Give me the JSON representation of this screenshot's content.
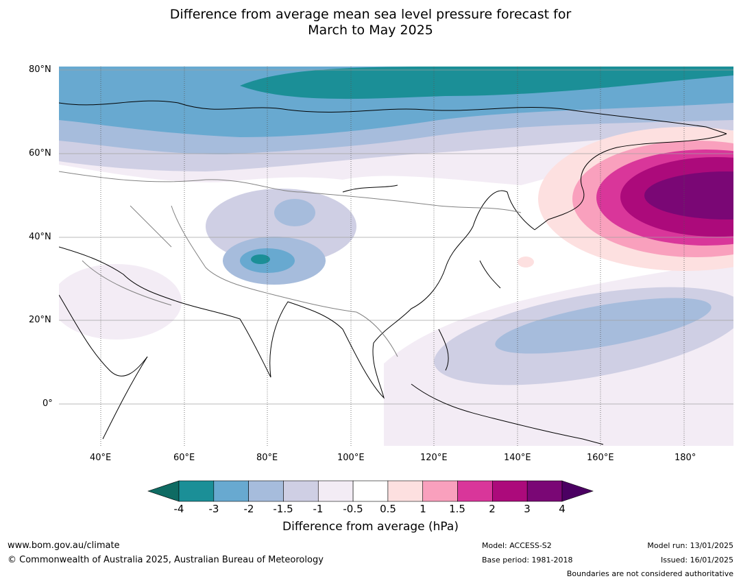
{
  "title_line1": "Difference from average mean sea level pressure forecast for",
  "title_line2": "March to May 2025",
  "lat_labels": [
    "80°N",
    "60°N",
    "40°N",
    "20°N",
    "0°"
  ],
  "lon_labels": [
    "40°E",
    "60°E",
    "80°E",
    "100°E",
    "120°E",
    "140°E",
    "160°E",
    "180°"
  ],
  "colorbar": {
    "ticks": [
      "-4",
      "-3",
      "-2",
      "-1.5",
      "-1",
      "-0.5",
      "0.5",
      "1",
      "1.5",
      "2",
      "3",
      "4"
    ],
    "colors": {
      "below": "#0f6b63",
      "bins": [
        "#1b8f97",
        "#68a9d0",
        "#a6bcdc",
        "#cfcfe4",
        "#f3ecf5",
        "#ffffff",
        "#fde0e0",
        "#f9a0bd",
        "#d9369a",
        "#ac0a7b",
        "#7a0775"
      ],
      "above": "#4b0062"
    },
    "label": "Difference from average (hPa)"
  },
  "footer": {
    "website": "www.bom.gov.au/climate",
    "copyright": "© Commonwealth of Australia 2025, Australian Bureau of Meteorology",
    "model": "Model: ACCESS-S2",
    "base_period": "Base period: 1981-2018",
    "model_run": "Model run: 13/01/2025",
    "issued": "Issued: 16/01/2025",
    "disclaimer": "Boundaries are not considered authoritative"
  }
}
